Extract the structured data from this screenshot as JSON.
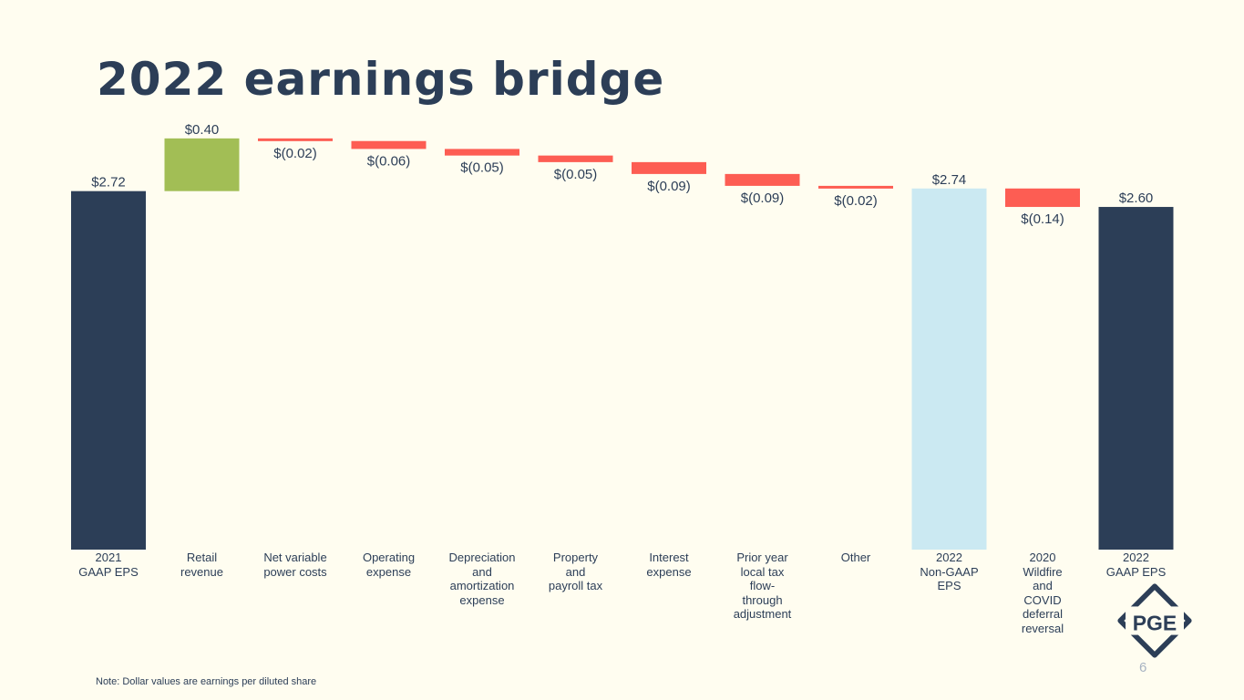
{
  "title": "2022 earnings bridge",
  "note": "Note: Dollar values are earnings per diluted share",
  "page_number": "6",
  "logo_text": "PGE",
  "colors": {
    "background": "#fffdf0",
    "total": "#2c3e57",
    "increase": "#a2be55",
    "decrease": "#fd5d53",
    "non_gaap": "#cbe9f2",
    "text": "#2c3e57",
    "page_number": "#a7b3c2"
  },
  "chart_data": {
    "type": "bar",
    "subtype": "waterfall",
    "title": "2022 earnings bridge",
    "units": "earnings per diluted share ($)",
    "ylim": [
      0,
      3.15
    ],
    "grid": false,
    "legend": "none",
    "categories": [
      "2021\nGAAP EPS",
      "Retail\nrevenue",
      "Net variable\npower costs",
      "Operating\nexpense",
      "Depreciation\nand\namortization\nexpense",
      "Property\nand\npayroll tax",
      "Interest\nexpense",
      "Prior year\nlocal tax\nflow-\nthrough\nadjustment",
      "Other",
      "2022\nNon-GAAP\nEPS",
      "2020\nWildfire\nand\nCOVID\ndeferral\nreversal",
      "2022\nGAAP EPS"
    ],
    "values": [
      2.72,
      0.4,
      -0.02,
      -0.06,
      -0.05,
      -0.05,
      -0.09,
      -0.09,
      -0.02,
      2.74,
      -0.14,
      2.6
    ],
    "kinds": [
      "total",
      "increase",
      "decrease",
      "decrease",
      "decrease",
      "decrease",
      "decrease",
      "decrease",
      "decrease",
      "non_gaap",
      "decrease",
      "total"
    ],
    "data_labels": [
      "$2.72",
      "$0.40",
      "$(0.02)",
      "$(0.06)",
      "$(0.05)",
      "$(0.05)",
      "$(0.09)",
      "$(0.09)",
      "$(0.02)",
      "$2.74",
      "$(0.14)",
      "$2.60"
    ]
  }
}
